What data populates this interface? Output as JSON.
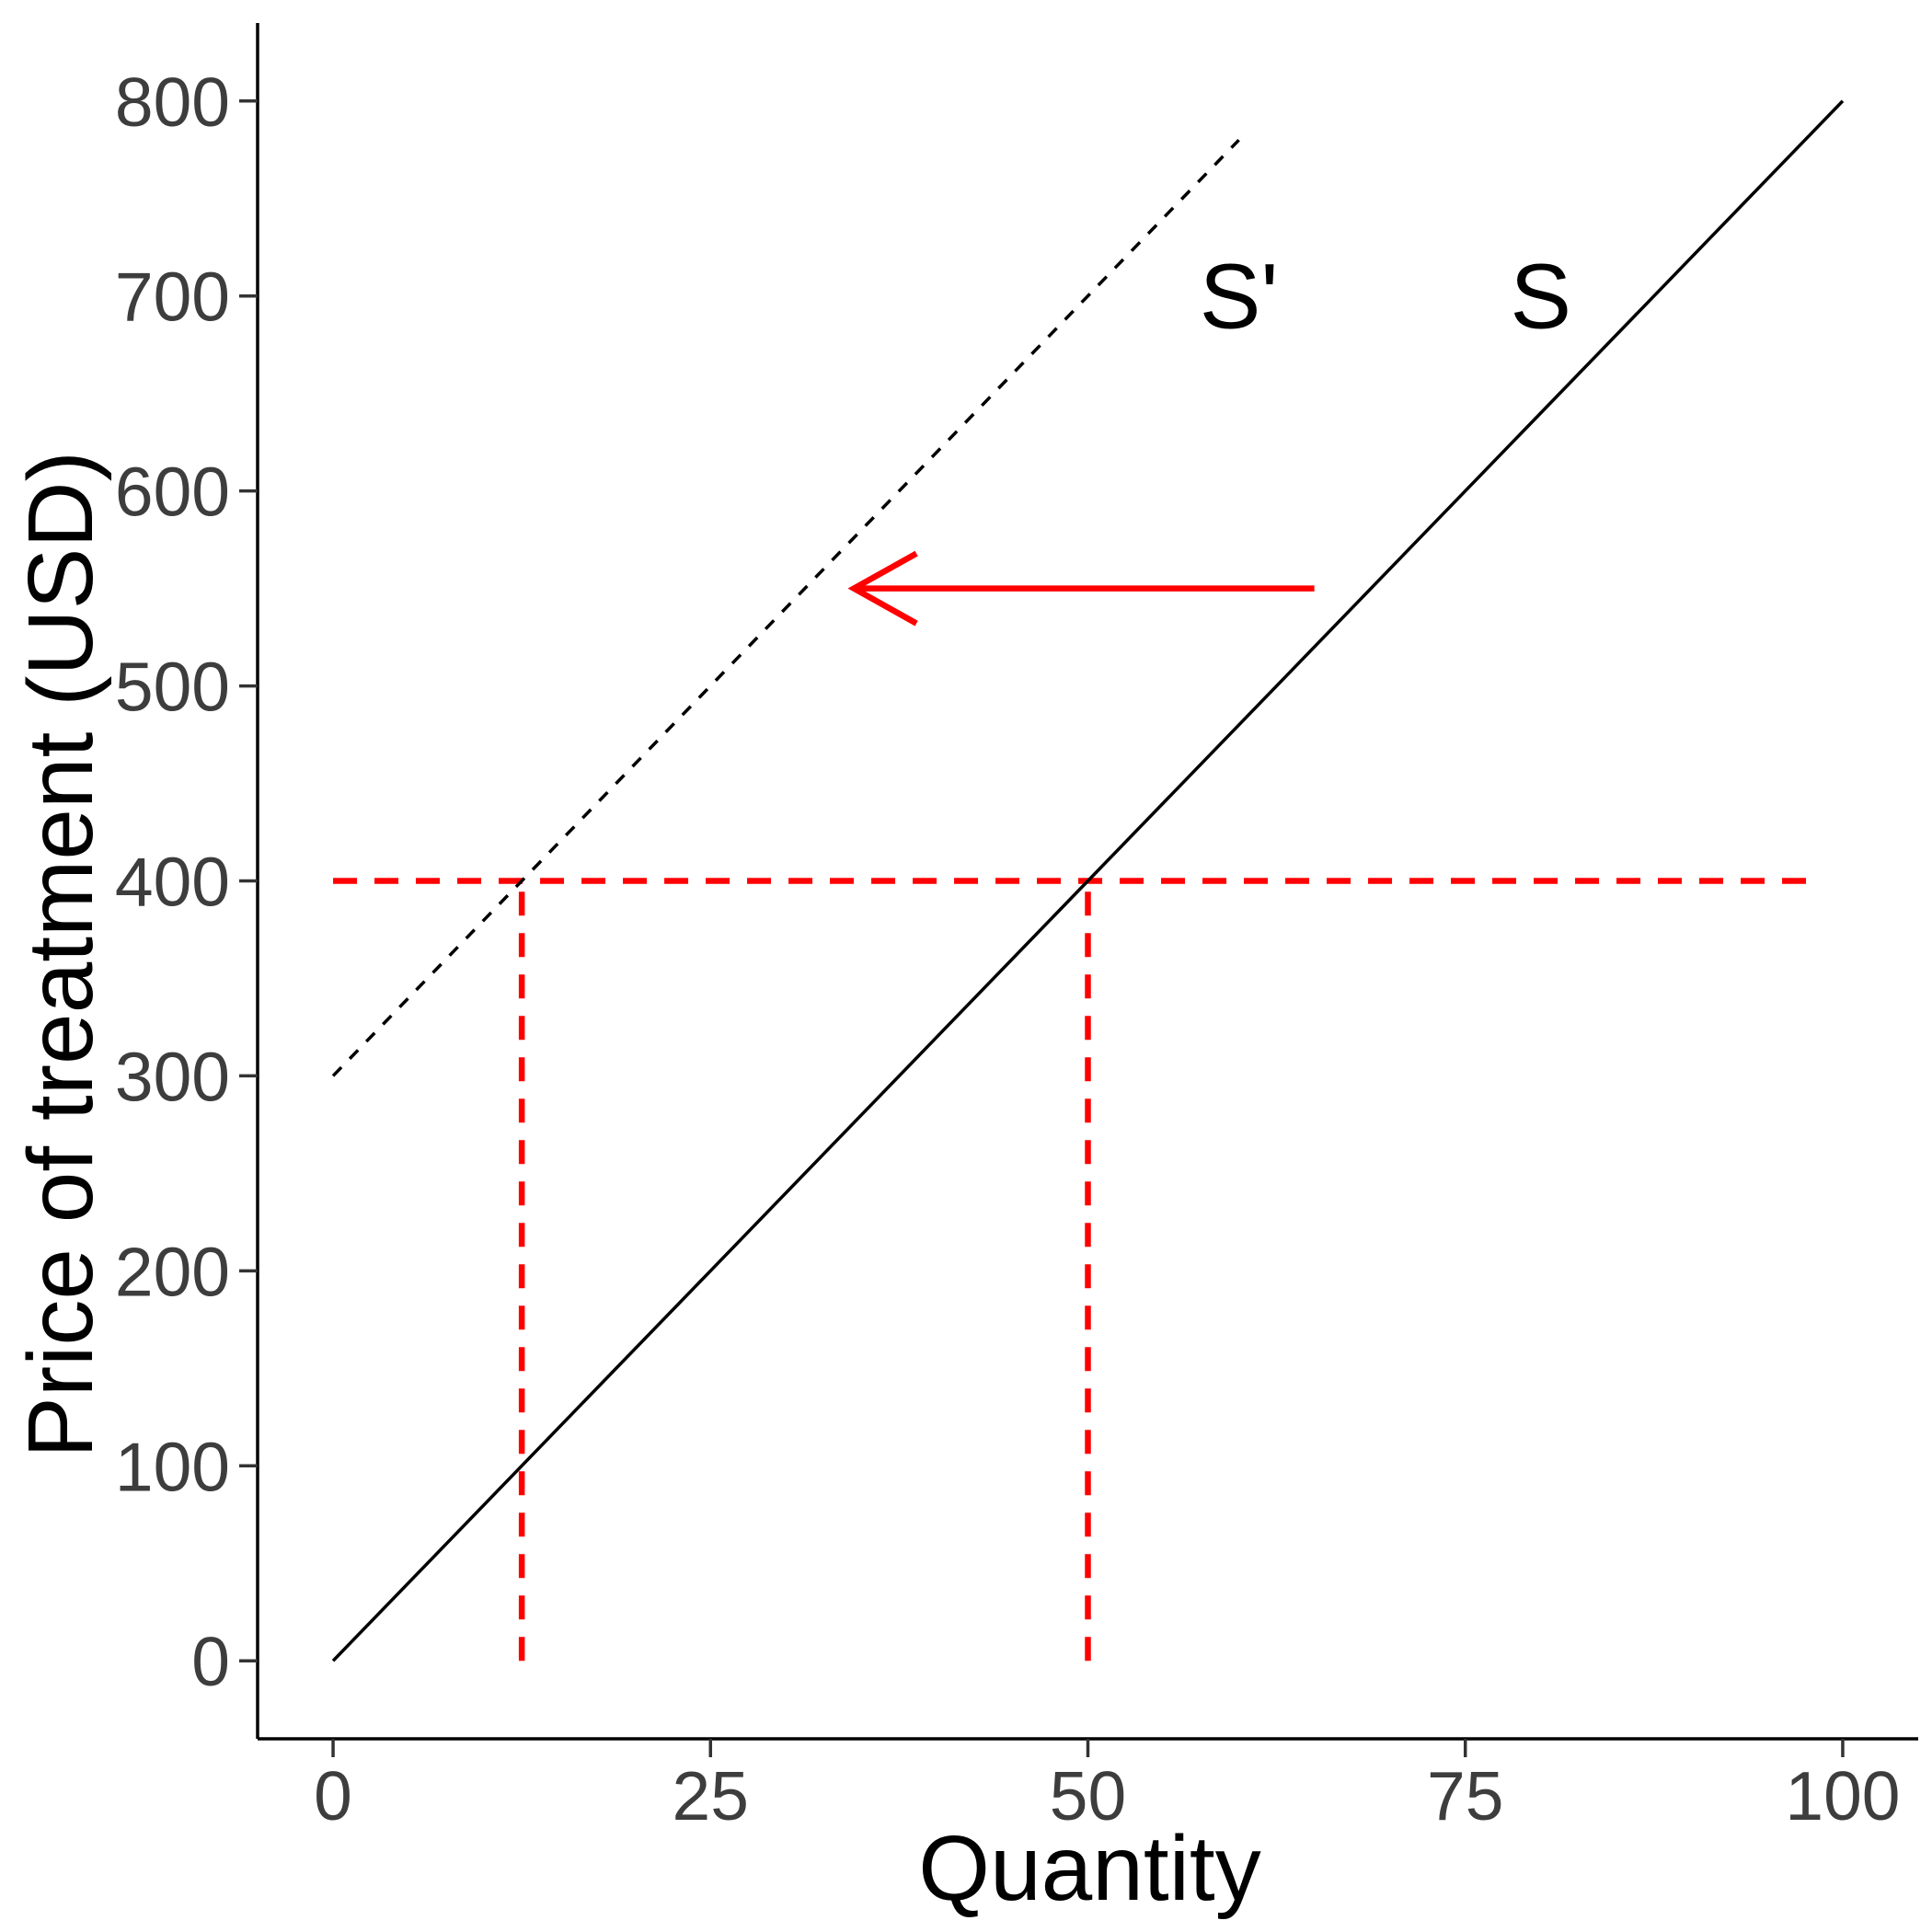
{
  "chart_data": {
    "type": "line",
    "title": "",
    "xlabel": "Quantity",
    "ylabel": "Price of treatment (USD)",
    "xlim": [
      -5,
      105
    ],
    "ylim": [
      -40,
      840
    ],
    "x_ticks": [
      0,
      25,
      50,
      75,
      100
    ],
    "y_ticks": [
      0,
      100,
      200,
      300,
      400,
      500,
      600,
      700,
      800
    ],
    "grid": false,
    "series": [
      {
        "name": "S",
        "style": "solid",
        "color": "#000000",
        "x": [
          0,
          100
        ],
        "y": [
          0,
          800
        ]
      },
      {
        "name": "S'",
        "style": "dashed",
        "color": "#000000",
        "x": [
          0,
          60
        ],
        "y": [
          300,
          780
        ]
      }
    ],
    "reference_lines": [
      {
        "orientation": "horizontal",
        "y": 400,
        "x_from": 0,
        "x_to": 98,
        "color": "#ff0000",
        "style": "dashed"
      },
      {
        "orientation": "vertical",
        "x": 12.5,
        "y_from": 0,
        "y_to": 400,
        "color": "#ff0000",
        "style": "dashed"
      },
      {
        "orientation": "vertical",
        "x": 50,
        "y_from": 0,
        "y_to": 400,
        "color": "#ff0000",
        "style": "dashed"
      }
    ],
    "annotations": [
      {
        "type": "label",
        "text": "S'",
        "x": 60,
        "y": 700
      },
      {
        "type": "label",
        "text": "S",
        "x": 80,
        "y": 700
      },
      {
        "type": "arrow",
        "from": [
          65,
          550
        ],
        "to": [
          34.5,
          550
        ],
        "color": "#ff0000"
      }
    ]
  }
}
